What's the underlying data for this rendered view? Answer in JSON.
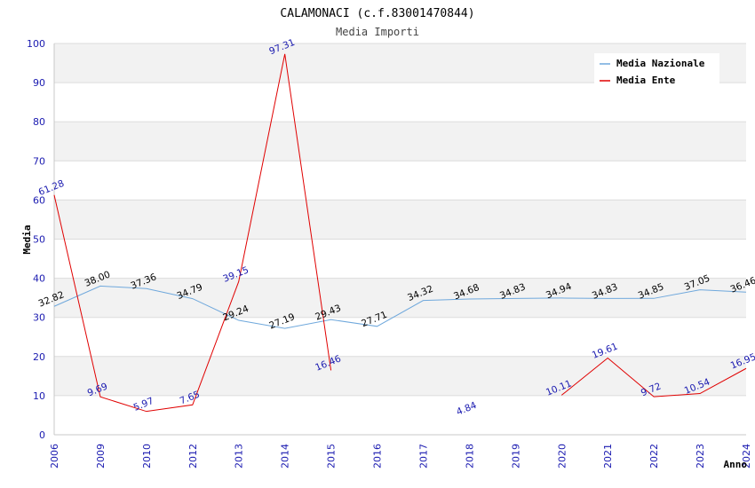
{
  "chart_data": {
    "type": "line",
    "title": "CALAMONACI (c.f.83001470844)",
    "subtitle": "Media Importi",
    "xlabel": "Anno",
    "ylabel": "Media",
    "ylim": [
      0,
      100
    ],
    "yticks": [
      0,
      10,
      20,
      30,
      40,
      50,
      60,
      70,
      80,
      90,
      100
    ],
    "categories": [
      "2006",
      "2009",
      "2010",
      "2012",
      "2013",
      "2014",
      "2015",
      "2016",
      "2017",
      "2018",
      "2019",
      "2020",
      "2021",
      "2022",
      "2023",
      "2024"
    ],
    "series": [
      {
        "name": "Media Nazionale",
        "color": "#6fa8dc",
        "values": [
          32.82,
          38.0,
          37.36,
          34.79,
          29.24,
          27.19,
          29.43,
          27.71,
          34.32,
          34.68,
          34.83,
          34.94,
          34.83,
          34.85,
          37.05,
          36.46
        ],
        "labels": [
          "32.82",
          "38.00",
          "37.36",
          "34.79",
          "29.24",
          "27.19",
          "29.43",
          "27.71",
          "34.32",
          "34.68",
          "34.83",
          "34.94",
          "34.83",
          "34.85",
          "37.05",
          "36.46"
        ]
      },
      {
        "name": "Media Ente",
        "color": "#e00000",
        "values": [
          61.28,
          9.69,
          5.97,
          7.65,
          39.15,
          97.31,
          16.46,
          null,
          null,
          4.84,
          null,
          10.11,
          19.61,
          9.72,
          10.54,
          16.95
        ],
        "labels": [
          "61.28",
          "9.69",
          "5.97",
          "7.65",
          "39.15",
          "97.31",
          "16.46",
          null,
          null,
          "4.84",
          null,
          "10.11",
          "19.61",
          "9.72",
          "10.54",
          "16.95"
        ]
      }
    ],
    "grid": true,
    "legend": "top-right"
  }
}
